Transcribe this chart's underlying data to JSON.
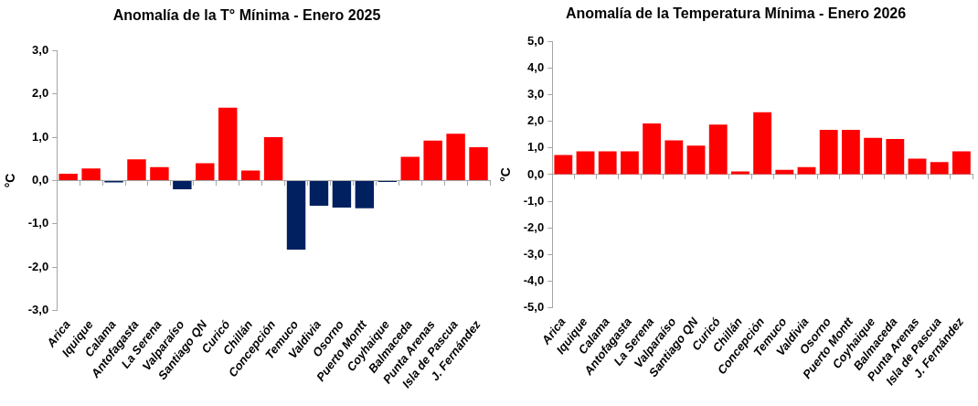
{
  "chart_data": [
    {
      "type": "bar",
      "title": "Anomalía de la T° Mínima - Enero 2025",
      "ylabel": "°C",
      "categories": [
        "Arica",
        "Iquique",
        "Calama",
        "Antofagasta",
        "La Serena",
        "Valparaíso",
        "Santiago QN",
        "Curicó",
        "Chillán",
        "Concepción",
        "Temuco",
        "Valdivia",
        "Osorno",
        "Puerto Montt",
        "Coyhaique",
        "Balmaceda",
        "Punta Arenas",
        "Isla de Pascua",
        "J. Fernández"
      ],
      "values": [
        0.16,
        0.28,
        -0.04,
        0.49,
        0.31,
        -0.2,
        0.4,
        1.68,
        0.23,
        1.0,
        -1.59,
        -0.58,
        -0.62,
        -0.64,
        -0.03,
        0.55,
        0.92,
        1.08,
        0.77
      ],
      "colors": [
        "#ff0000",
        "#ff0000",
        "#002060",
        "#ff0000",
        "#ff0000",
        "#002060",
        "#ff0000",
        "#ff0000",
        "#ff0000",
        "#ff0000",
        "#002060",
        "#002060",
        "#002060",
        "#002060",
        "#002060",
        "#ff0000",
        "#ff0000",
        "#ff0000",
        "#ff0000"
      ],
      "ylim": [
        -3,
        3
      ],
      "yticks": [
        {
          "value": -3,
          "label": "-3,0"
        },
        {
          "value": -2,
          "label": "-2,0"
        },
        {
          "value": -1,
          "label": "-1,0"
        },
        {
          "value": 0,
          "label": "0,0"
        },
        {
          "value": 1,
          "label": "1,0"
        },
        {
          "value": 2,
          "label": "2,0"
        },
        {
          "value": 3,
          "label": "3,0"
        }
      ]
    },
    {
      "type": "bar",
      "title": "Anomalía de la Temperatura Mínima - Enero 2026",
      "ylabel": "°C",
      "categories": [
        "Arica",
        "Iquique",
        "Calama",
        "Antofagasta",
        "La Serena",
        "Valparaíso",
        "Santiago QN",
        "Curicó",
        "Chillán",
        "Concepción",
        "Temuco",
        "Valdivia",
        "Osorno",
        "Puerto Montt",
        "Coyhaique",
        "Balmaceda",
        "Punta Arenas",
        "Isla de Pascua",
        "J. Fernández"
      ],
      "values": [
        0.74,
        0.87,
        0.87,
        0.87,
        1.92,
        1.29,
        1.09,
        1.88,
        0.12,
        2.34,
        0.18,
        0.28,
        1.68,
        1.68,
        1.38,
        1.34,
        0.6,
        0.47,
        0.87
      ],
      "color": "#ff0000",
      "ylim": [
        -5,
        5
      ],
      "yticks": [
        {
          "value": -5,
          "label": "-5,0"
        },
        {
          "value": -4,
          "label": "-4,0"
        },
        {
          "value": -3,
          "label": "-3,0"
        },
        {
          "value": -2,
          "label": "-2,0"
        },
        {
          "value": -1,
          "label": "-1,0"
        },
        {
          "value": 0,
          "label": "0,0"
        },
        {
          "value": 1,
          "label": "1,0"
        },
        {
          "value": 2,
          "label": "2,0"
        },
        {
          "value": 3,
          "label": "3,0"
        },
        {
          "value": 4,
          "label": "4,0"
        },
        {
          "value": 5,
          "label": "5,0"
        }
      ]
    }
  ]
}
